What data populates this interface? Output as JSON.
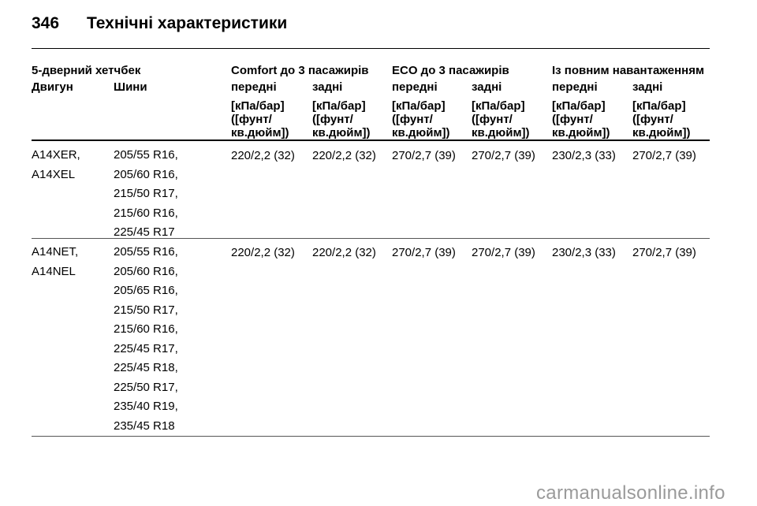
{
  "header": {
    "page_number": "346",
    "title": "Технічні характеристики"
  },
  "table": {
    "group_headers": {
      "body": "5-дверний хетчбек",
      "comfort": "Comfort до 3 пасажирів",
      "eco": "ECO до 3 пасажирів",
      "full": "Із повним навантаженням"
    },
    "sub_headers": {
      "engine": "Двигун",
      "tires": "Шини",
      "comfort_front": "передні",
      "comfort_rear": "задні",
      "eco_front": "передні",
      "eco_rear": "задні",
      "full_front": "передні",
      "full_rear": "задні"
    },
    "unit_lines": [
      "[кПа/бар]",
      "([фунт/",
      "кв.дюйм])"
    ],
    "rows": [
      {
        "engine": [
          "A14XER,",
          "A14XEL"
        ],
        "tires": [
          "205/55 R16,",
          "205/60 R16,",
          "215/50 R17,",
          "215/60 R16,",
          "225/45 R17"
        ],
        "pressures": [
          "220/2,2 (32)",
          "220/2,2 (32)",
          "270/2,7 (39)",
          "270/2,7 (39)",
          "230/2,3 (33)",
          "270/2,7 (39)"
        ]
      },
      {
        "engine": [
          "A14NET,",
          "A14NEL"
        ],
        "tires": [
          "205/55 R16,",
          "205/60 R16,",
          "205/65 R16,",
          "215/50 R17,",
          "215/60 R16,",
          "225/45 R17,",
          "225/45 R18,",
          "225/50 R17,",
          "235/40 R19,",
          "235/45 R18"
        ],
        "pressures": [
          "220/2,2 (32)",
          "220/2,2 (32)",
          "270/2,7 (39)",
          "270/2,7 (39)",
          "230/2,3 (33)",
          "270/2,7 (39)"
        ]
      }
    ]
  },
  "footer": {
    "watermark": "carmanualsonline.info"
  }
}
